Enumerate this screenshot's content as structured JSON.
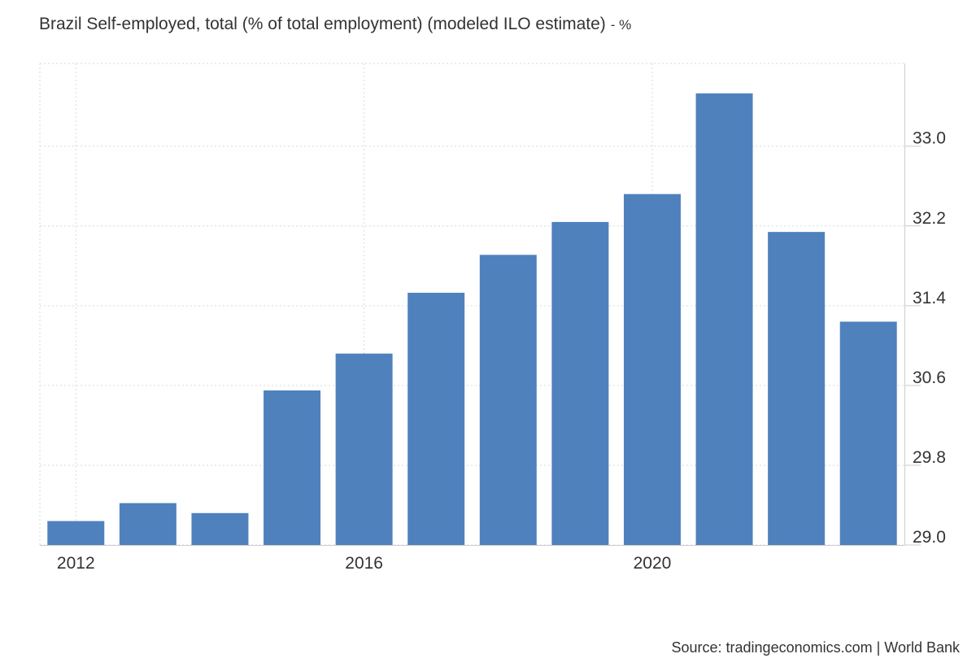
{
  "title": "Brazil Self-employed, total (% of total employment) (modeled ILO estimate)",
  "unit": "- %",
  "source": "Source: tradingeconomics.com | World Bank",
  "colors": {
    "bar": "#4f81bd",
    "grid": "#d9d9d9",
    "axis": "#cccccc"
  },
  "chart_data": {
    "type": "bar",
    "categories": [
      "2012",
      "2013",
      "2014",
      "2015",
      "2016",
      "2017",
      "2018",
      "2019",
      "2020",
      "2021",
      "2022",
      "2023"
    ],
    "values": [
      29.24,
      29.42,
      29.32,
      30.55,
      30.92,
      31.53,
      31.91,
      32.24,
      32.52,
      33.53,
      32.14,
      31.24
    ],
    "x_tick_labels": [
      "2012",
      "2016",
      "2020"
    ],
    "y_ticks": [
      "29.0",
      "29.8",
      "30.6",
      "31.4",
      "32.2",
      "33.0"
    ],
    "ylim": [
      29.0,
      33.83
    ],
    "grid": true,
    "legend": "none"
  }
}
